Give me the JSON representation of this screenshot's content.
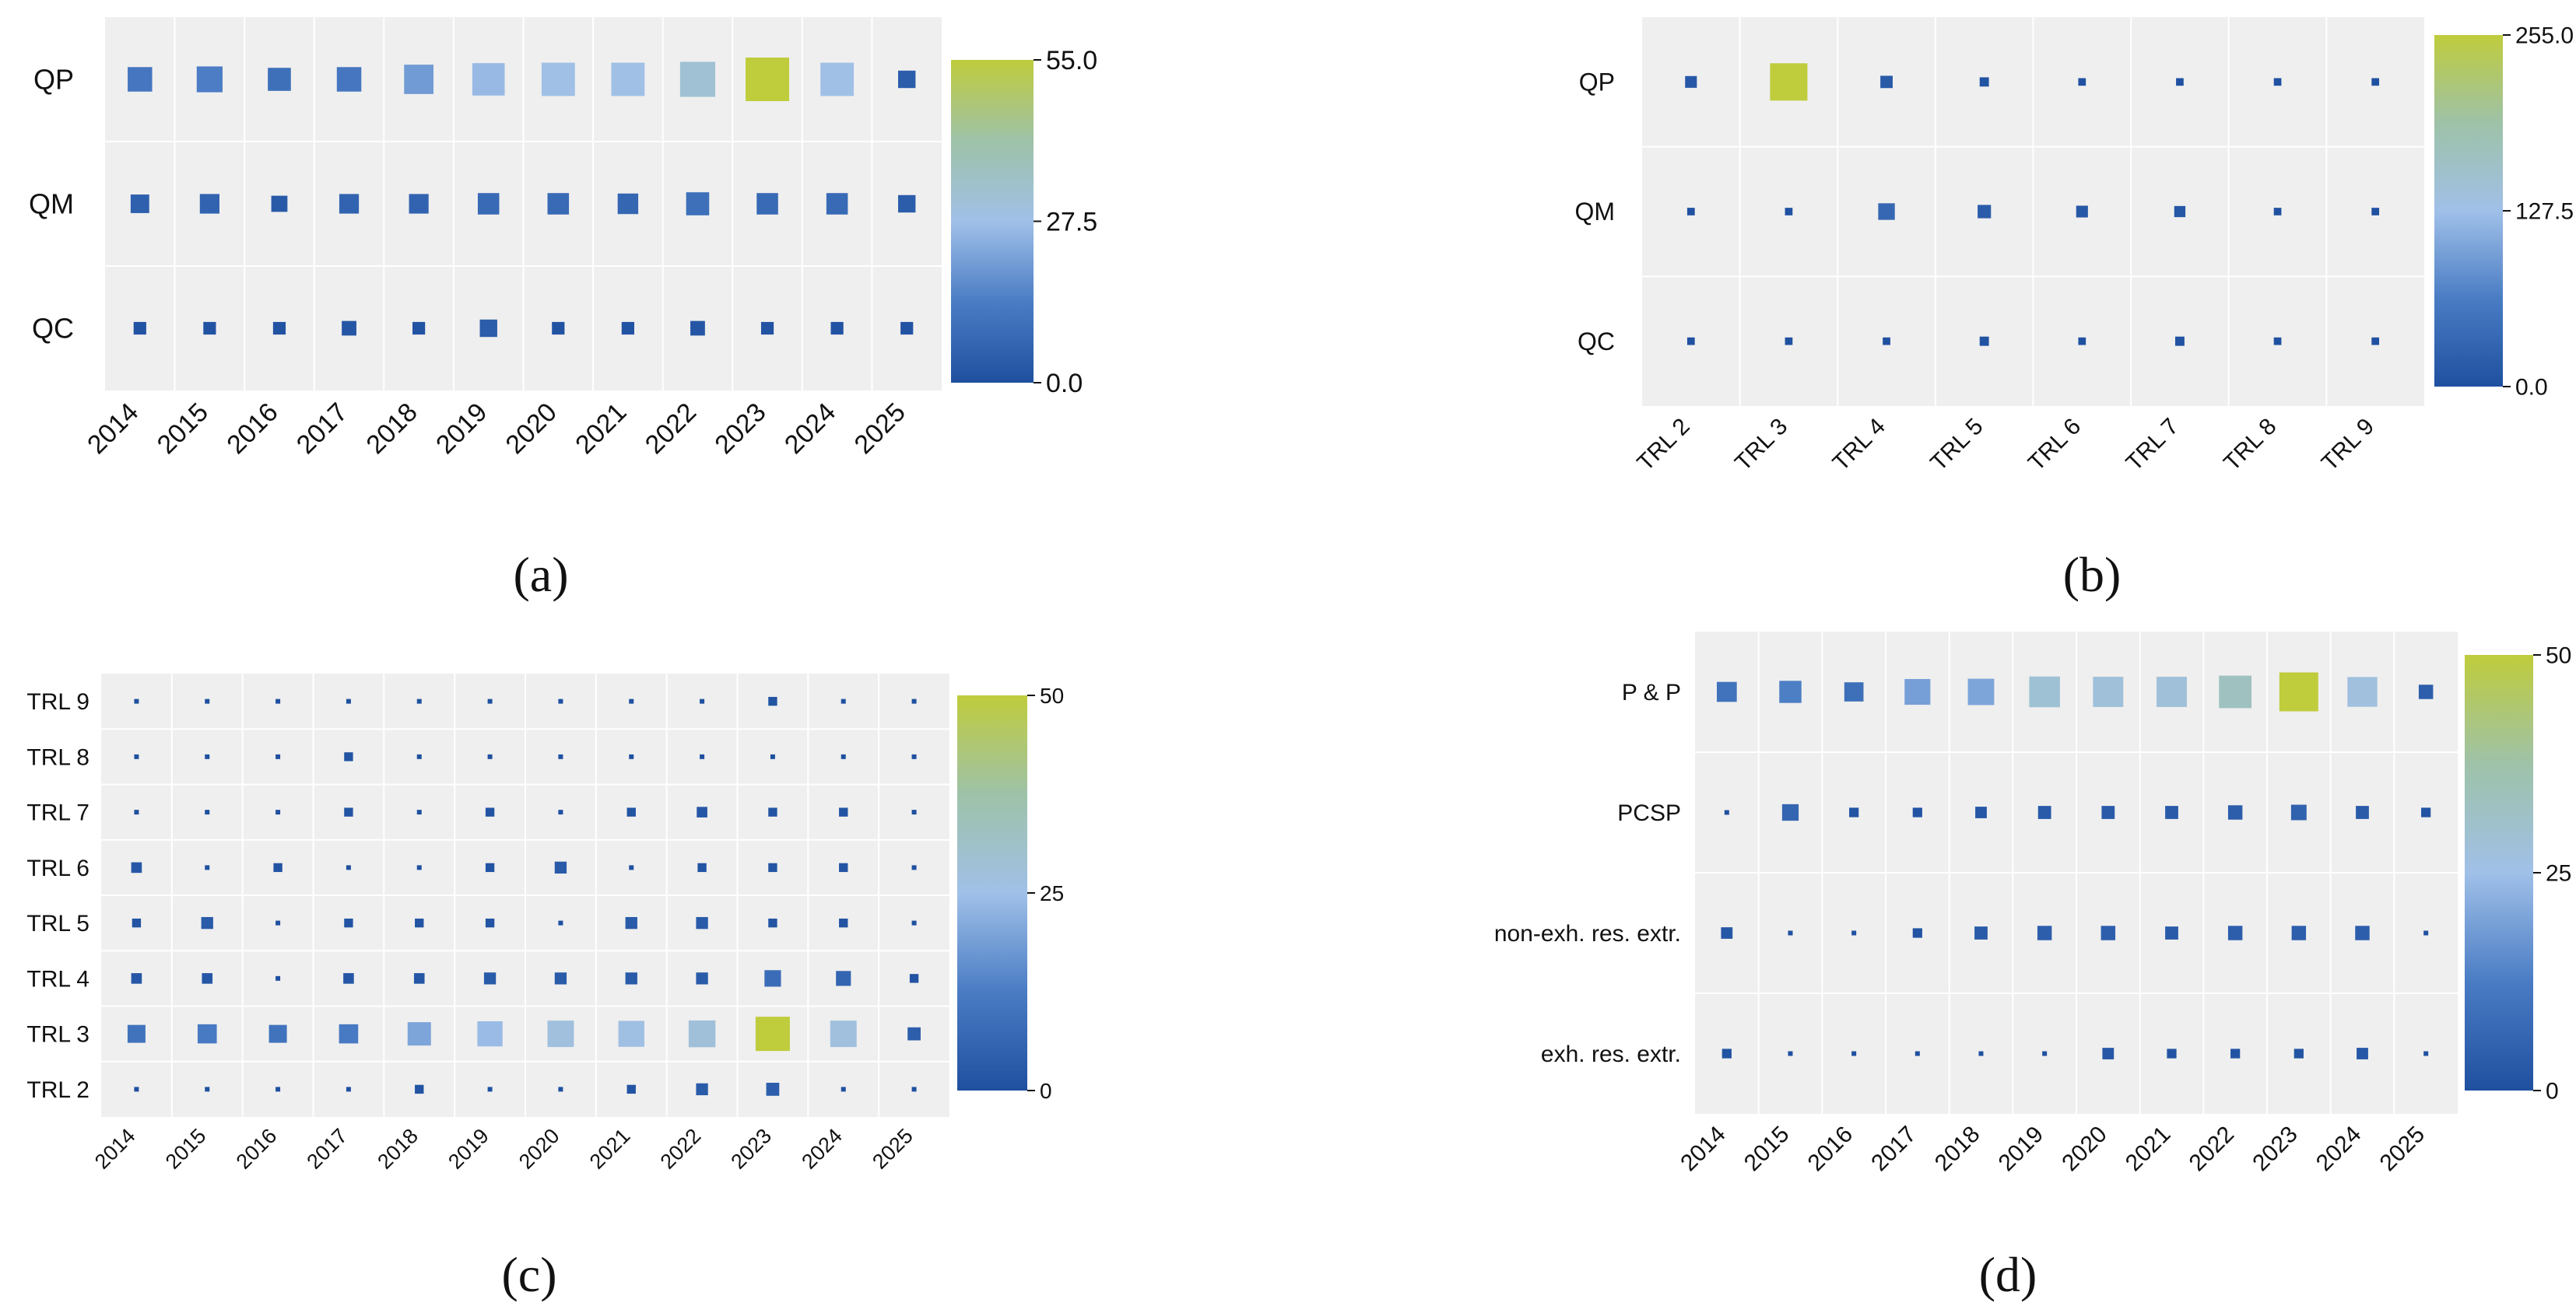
{
  "chart_data": [
    {
      "panel": "a",
      "caption": "(a)",
      "type": "heatmap",
      "x": [
        "2014",
        "2015",
        "2016",
        "2017",
        "2018",
        "2019",
        "2020",
        "2021",
        "2022",
        "2023",
        "2024",
        "2025"
      ],
      "y": [
        "QP",
        "QM",
        "QC"
      ],
      "values": [
        [
          12,
          14,
          10,
          12,
          20,
          26,
          28,
          28,
          32,
          55,
          28,
          4
        ],
        [
          5,
          6,
          3,
          6,
          6,
          8,
          8,
          7,
          10,
          8,
          8,
          4
        ],
        [
          1,
          1,
          1,
          2,
          1,
          4,
          1,
          1,
          2,
          1,
          1,
          1
        ]
      ],
      "colorbar": {
        "min": 0.0,
        "max": 55.0,
        "ticks": [
          "0.0",
          "27.5",
          "55.0"
        ]
      },
      "x_tick_rotation": "45",
      "grid": true
    },
    {
      "panel": "b",
      "caption": "(b)",
      "type": "heatmap",
      "x": [
        "TRL 2",
        "TRL 3",
        "TRL 4",
        "TRL 5",
        "TRL 6",
        "TRL 7",
        "TRL 8",
        "TRL 9"
      ],
      "y": [
        "QP",
        "QM",
        "QC"
      ],
      "values": [
        [
          12,
          255,
          14,
          5,
          2,
          2,
          2,
          2
        ],
        [
          2,
          2,
          34,
          18,
          12,
          10,
          2,
          2
        ],
        [
          2,
          2,
          2,
          5,
          2,
          5,
          2,
          2
        ]
      ],
      "colorbar": {
        "min": 0.0,
        "max": 255.0,
        "ticks": [
          "0.0",
          "127.5",
          "255.0"
        ]
      },
      "x_tick_rotation": "45",
      "grid": true
    },
    {
      "panel": "c",
      "caption": "(c)",
      "type": "heatmap",
      "x": [
        "2014",
        "2015",
        "2016",
        "2017",
        "2018",
        "2019",
        "2020",
        "2021",
        "2022",
        "2023",
        "2024",
        "2025"
      ],
      "y": [
        "TRL 9",
        "TRL 8",
        "TRL 7",
        "TRL 6",
        "TRL 5",
        "TRL 4",
        "TRL 3",
        "TRL 2"
      ],
      "values": [
        [
          0,
          0,
          0,
          0,
          0,
          0,
          0,
          0,
          0,
          1,
          0,
          0
        ],
        [
          0,
          0,
          0,
          1,
          0,
          0,
          0,
          0,
          0,
          0,
          0,
          0
        ],
        [
          0,
          0,
          0,
          1,
          0,
          1,
          0,
          1,
          2,
          1,
          1,
          0
        ],
        [
          2,
          0,
          1,
          0,
          0,
          1,
          3,
          0,
          1,
          1,
          1,
          0
        ],
        [
          1,
          3,
          0,
          1,
          1,
          1,
          0,
          3,
          3,
          1,
          1,
          0
        ],
        [
          2,
          2,
          0,
          2,
          2,
          3,
          3,
          3,
          3,
          8,
          6,
          1
        ],
        [
          10,
          12,
          10,
          12,
          20,
          24,
          27,
          26,
          28,
          50,
          27,
          4
        ],
        [
          0,
          0,
          0,
          0,
          1,
          0,
          0,
          1,
          3,
          4,
          0,
          0
        ]
      ],
      "colorbar": {
        "min": 0,
        "max": 50,
        "ticks": [
          "0",
          "25",
          "50"
        ]
      },
      "x_tick_rotation": "45",
      "grid": true
    },
    {
      "panel": "d",
      "caption": "(d)",
      "type": "heatmap",
      "x": [
        "2014",
        "2015",
        "2016",
        "2017",
        "2018",
        "2019",
        "2020",
        "2021",
        "2022",
        "2023",
        "2024",
        "2025"
      ],
      "y": [
        "P & P",
        "PCSP",
        "non-exh. res. extr.",
        "exh. res. extr."
      ],
      "values": [
        [
          10,
          13,
          9,
          19,
          20,
          29,
          28,
          28,
          33,
          50,
          27,
          4
        ],
        [
          0,
          6,
          1,
          1,
          2,
          3,
          3,
          3,
          4,
          5,
          3,
          1
        ],
        [
          2,
          0,
          0,
          1,
          3,
          4,
          4,
          3,
          4,
          4,
          4,
          0
        ],
        [
          1,
          0,
          0,
          0,
          0,
          0,
          2,
          1,
          1,
          1,
          2,
          0
        ]
      ],
      "colorbar": {
        "min": 0,
        "max": 50,
        "ticks": [
          "0",
          "25",
          "50"
        ]
      },
      "x_tick_rotation": "45",
      "grid": true
    }
  ]
}
